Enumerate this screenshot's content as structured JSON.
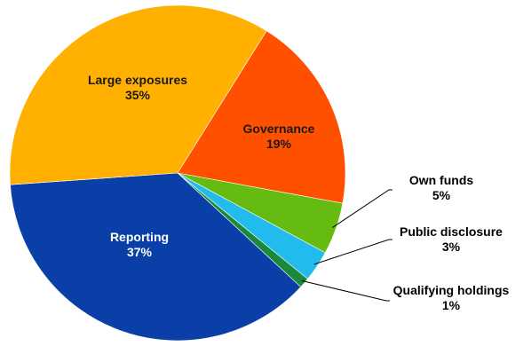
{
  "chart_data": {
    "type": "pie",
    "title": "",
    "slices": [
      {
        "label": "Governance",
        "percent_label": "19%",
        "value": 19,
        "color": "#FF5000"
      },
      {
        "label": "Own funds",
        "percent_label": "5%",
        "value": 5,
        "color": "#66BB11"
      },
      {
        "label": "Public disclosure",
        "percent_label": "3%",
        "value": 3,
        "color": "#22BBEE"
      },
      {
        "label": "Qualifying holdings",
        "percent_label": "1%",
        "value": 1,
        "color": "#1A8A3A"
      },
      {
        "label": "Reporting",
        "percent_label": "37%",
        "value": 37,
        "color": "#0A3FA8"
      },
      {
        "label": "Large exposures",
        "percent_label": "35%",
        "value": 35,
        "color": "#FFB000"
      }
    ],
    "label_colors": {
      "Governance": "#1a1a1a",
      "Large exposures": "#1a1a1a",
      "Reporting": "#ffffff",
      "Own funds": "#000000",
      "Public disclosure": "#000000",
      "Qualifying holdings": "#000000"
    }
  }
}
